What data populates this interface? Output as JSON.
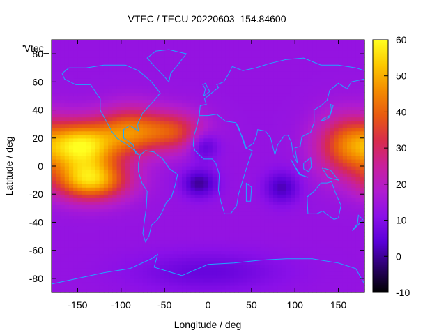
{
  "chart_data": {
    "type": "heatmap",
    "title": "VTEC / TECU 20220603_154.84600",
    "xlabel": "Longitude / deg",
    "ylabel": "Latitude / deg",
    "key_label": "'Vtec_",
    "xlim": [
      -180,
      180
    ],
    "ylim": [
      -90,
      90
    ],
    "x_ticks": [
      "-150",
      "-100",
      "-50",
      "0",
      "50",
      "100",
      "150"
    ],
    "y_ticks": [
      "-80",
      "-60",
      "-40",
      "-20",
      "0",
      "20",
      "40",
      "60",
      "80"
    ],
    "colorbar": {
      "range": [
        -10,
        60
      ],
      "ticks": [
        "-10",
        "0",
        "10",
        "20",
        "30",
        "40",
        "50",
        "60"
      ],
      "palette": [
        "#000000",
        "#2a0068",
        "#5a00d8",
        "#8a10e8",
        "#b01cd0",
        "#c8209c",
        "#d82c4c",
        "#e85a10",
        "#f48c00",
        "#fcc800",
        "#ffff20"
      ]
    },
    "grid": false,
    "features": [
      {
        "lon": -145,
        "lat": 15,
        "vtec": 55,
        "spread_lon": 28,
        "spread_lat": 12
      },
      {
        "lon": -135,
        "lat": -10,
        "vtec": 52,
        "spread_lon": 30,
        "spread_lat": 10
      },
      {
        "lon": -90,
        "lat": 25,
        "vtec": 40,
        "spread_lon": 25,
        "spread_lat": 12
      },
      {
        "lon": -40,
        "lat": 25,
        "vtec": 35,
        "spread_lon": 25,
        "spread_lat": 10
      },
      {
        "lon": 160,
        "lat": 15,
        "vtec": 40,
        "spread_lon": 25,
        "spread_lat": 15
      },
      {
        "lon": -5,
        "lat": 15,
        "vtec": 2,
        "spread_lon": 12,
        "spread_lat": 7
      },
      {
        "lon": -10,
        "lat": -12,
        "vtec": 0,
        "spread_lon": 14,
        "spread_lat": 7
      },
      {
        "lon": 85,
        "lat": -15,
        "vtec": 2,
        "spread_lon": 14,
        "spread_lat": 8
      },
      {
        "lon": 0,
        "lat": -75,
        "vtec": 6,
        "spread_lon": 60,
        "spread_lat": 10
      }
    ]
  }
}
